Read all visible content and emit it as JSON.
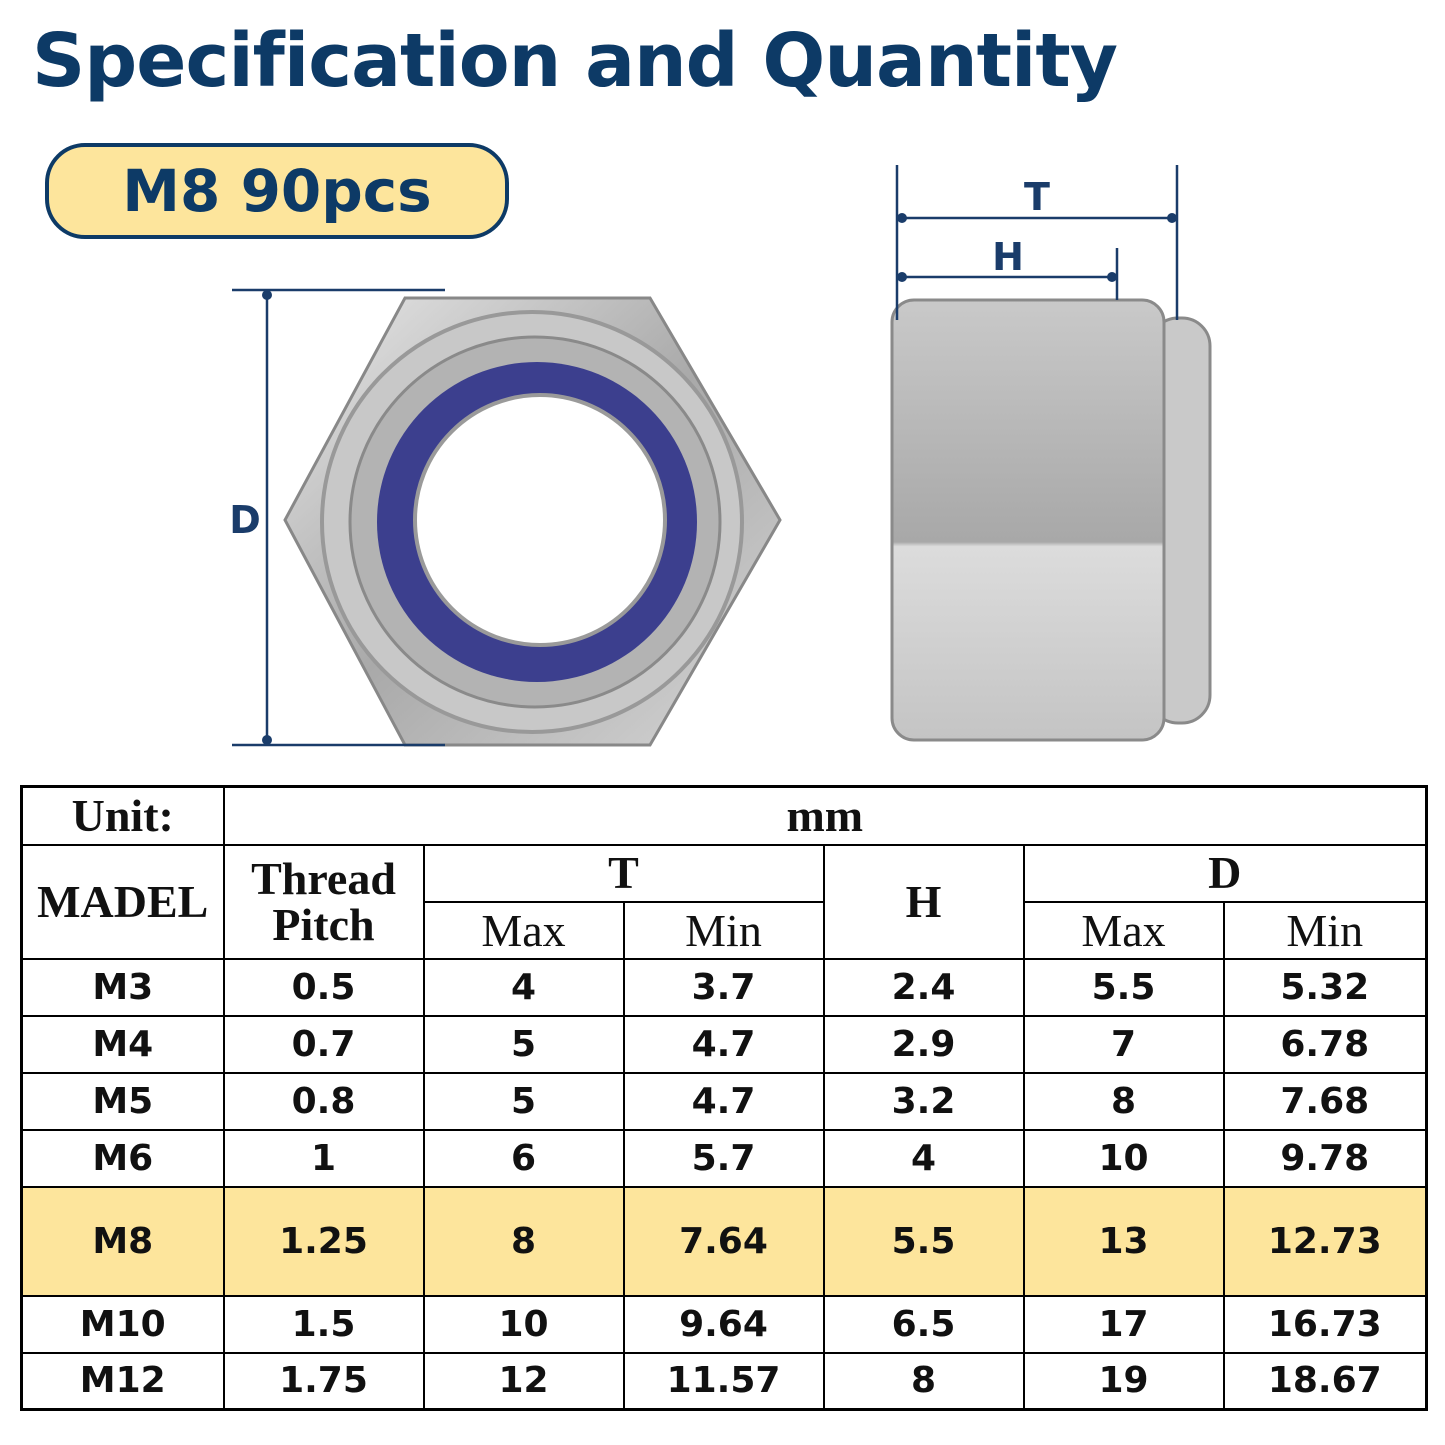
{
  "header": {
    "title": "Specification and Quantity",
    "badge": "M8 90pcs"
  },
  "diagram": {
    "t": "T",
    "h": "H",
    "d": "D"
  },
  "table": {
    "unit_label": "Unit:",
    "unit": "mm",
    "columns": {
      "model": "MADEL",
      "pitch": "Thread Pitch",
      "t": "T",
      "h": "H",
      "d": "D"
    },
    "subcolumns": [
      "Max",
      "Min",
      "Max",
      "Min"
    ],
    "rows": [
      [
        "M3",
        "0.5",
        "4",
        "3.7",
        "2.4",
        "5.5",
        "5.32"
      ],
      [
        "M4",
        "0.7",
        "5",
        "4.7",
        "2.9",
        "7",
        "6.78"
      ],
      [
        "M5",
        "0.8",
        "5",
        "4.7",
        "3.2",
        "8",
        "7.68"
      ],
      [
        "M6",
        "1",
        "6",
        "5.7",
        "4",
        "10",
        "9.78"
      ],
      [
        "M8",
        "1.25",
        "8",
        "7.64",
        "5.5",
        "13",
        "12.73"
      ],
      [
        "M10",
        "1.5",
        "10",
        "9.64",
        "6.5",
        "17",
        "16.73"
      ],
      [
        "M12",
        "1.75",
        "12",
        "11.57",
        "8",
        "19",
        "18.67"
      ]
    ]
  }
}
